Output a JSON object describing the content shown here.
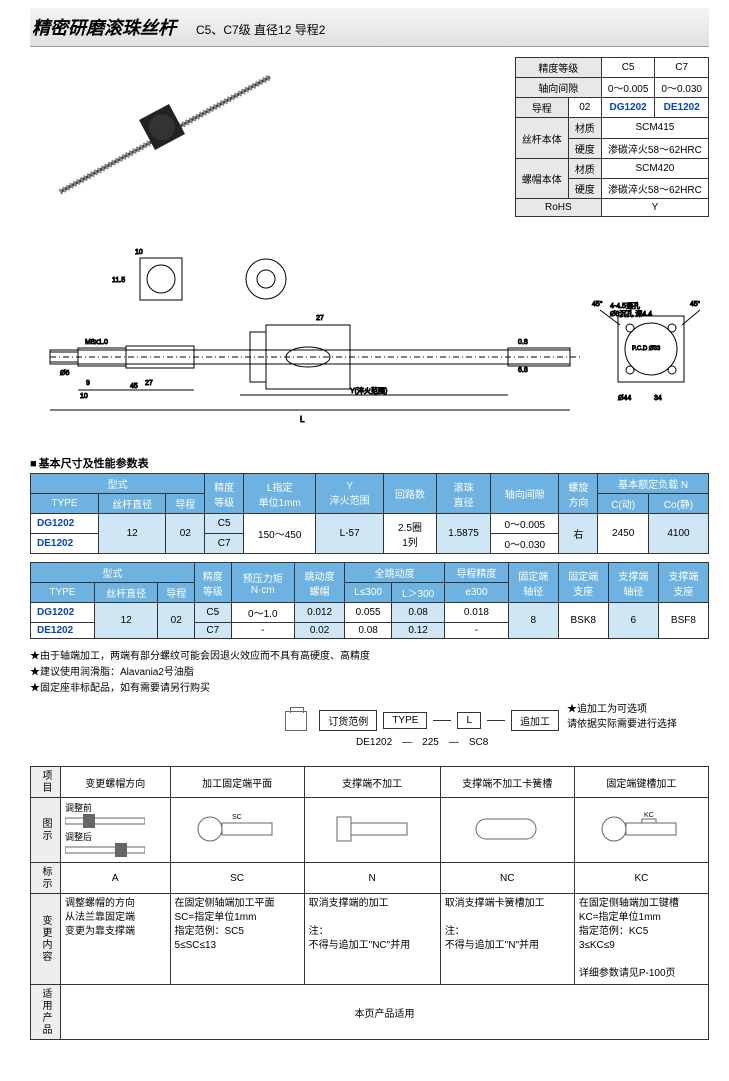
{
  "header": {
    "title": "精密研磨滚珠丝杆",
    "subtitle": "C5、C7级 直径12 导程2"
  },
  "spec_table": {
    "rows": [
      {
        "label": "精度等级",
        "c5": "C5",
        "c7": "C7",
        "rowspan": 1
      },
      {
        "label": "轴向间隙",
        "c5": "0～0.005",
        "c7": "0～0.030"
      },
      {
        "label": "导程",
        "lead": "02",
        "c5_id": "DG1202",
        "c7_id": "DE1202"
      }
    ],
    "body_rows": [
      {
        "group": "丝杆本体",
        "label": "材质",
        "val": "SCM415"
      },
      {
        "group": "",
        "label": "硬度",
        "val": "渗碳淬火58～62HRC"
      },
      {
        "group": "螺帽本体",
        "label": "材质",
        "val": "SCM420"
      },
      {
        "group": "",
        "label": "硬度",
        "val": "渗碳淬火58～62HRC"
      }
    ],
    "rohs_label": "RoHS",
    "rohs_val": "Y"
  },
  "section1_label": "基本尺寸及性能参数表",
  "table1": {
    "headers": [
      "型式",
      "",
      "精度等级",
      "L指定 单位1mm",
      "Y 淬火范围",
      "回路数",
      "滚珠 直径",
      "轴向间隙",
      "螺旋 方向",
      "基本额定负载 N",
      ""
    ],
    "sub": [
      "TYPE",
      "丝杆直径",
      "导程",
      "",
      "",
      "",
      "",
      "",
      "",
      "",
      "C(动)",
      "Co(静)"
    ],
    "r1": {
      "id": "DG1202",
      "dia": "12",
      "lead": "02",
      "grade": "C5",
      "L": "150～450",
      "Y": "L-57",
      "loop": "2.5圈 1列",
      "ball": "1.5875",
      "gap": "0～0.005",
      "dir": "右",
      "c": "2450",
      "co": "4100"
    },
    "r2": {
      "id": "DE1202",
      "grade": "C7",
      "gap": "0～0.030"
    }
  },
  "table2": {
    "headers": [
      "型式",
      "",
      "精度等级",
      "预压力矩 N·cm",
      "跳动度 螺帽",
      "全跳动度",
      "",
      "导程精度",
      "固定端 轴径",
      "固定端 支座",
      "支撑端 轴径",
      "支撑端 支座"
    ],
    "sub": [
      "TYPE",
      "丝杆直径",
      "导程",
      "",
      "",
      "",
      "L≤300",
      "L＞300",
      "e300",
      "",
      "",
      "",
      ""
    ],
    "r1": {
      "id": "DG1202",
      "dia": "12",
      "lead": "02",
      "grade": "C5",
      "pre": "0～1.0",
      "run": "0.012",
      "full1": "0.055",
      "full2": "0.08",
      "e": "0.018",
      "fd": "8",
      "fs": "BSK8",
      "sd": "6",
      "ss": "BSF8"
    },
    "r2": {
      "id": "DE1202",
      "grade": "C7",
      "pre": "-",
      "run": "0.02",
      "full1": "0.08",
      "full2": "0.12",
      "e": "-"
    }
  },
  "notes": [
    "由于轴端加工，两端有部分螺纹可能会因退火效应而不具有高硬度、高精度",
    "建议使用润滑脂：Alavania2号油脂",
    "固定座非标配品，如有需要请另行购买"
  ],
  "order": {
    "boxes": [
      "订货范例",
      "TYPE",
      "L",
      "追加工"
    ],
    "side_note_star": "★追加工为可选项",
    "side_note": "请依据实际需要进行选择",
    "example": "DE1202　—　225　—　SC8"
  },
  "opts": {
    "head": [
      "项目",
      "变更螺帽方向",
      "加工固定端平面",
      "支撑端不加工",
      "支撑端不加工卡簧槽",
      "固定端键槽加工"
    ],
    "diag_labels": {
      "before": "调整前",
      "after": "调整后",
      "sc": "SC"
    },
    "mark_row": [
      "标示",
      "A",
      "SC",
      "N",
      "NC",
      "KC"
    ],
    "change_row": {
      "label": "变更内容",
      "a": "调整螺帽的方向\n从法兰靠固定端\n变更为靠支撑端",
      "sc": "在固定侧轴端加工平面\nSC=指定单位1mm\n指定范例：SC5\n5≤SC≤13",
      "n": "取消支撑端的加工\n\n注：\n不得与追加工\"NC\"并用",
      "nc": "取消支撑端卡簧槽加工\n\n注：\n不得与追加工\"N\"并用",
      "kc": "在固定侧轴端加工键槽\nKC=指定单位1mm\n指定范例：KC5\n3≤KC≤9\n\n详细参数请见P-100页"
    },
    "apply_row": {
      "label": "适用产品",
      "val": "本页产品适用"
    }
  },
  "colors": {
    "header_blue": "#6db2e1",
    "light_blue": "#cfe6f5",
    "link_blue": "#0044cc"
  }
}
